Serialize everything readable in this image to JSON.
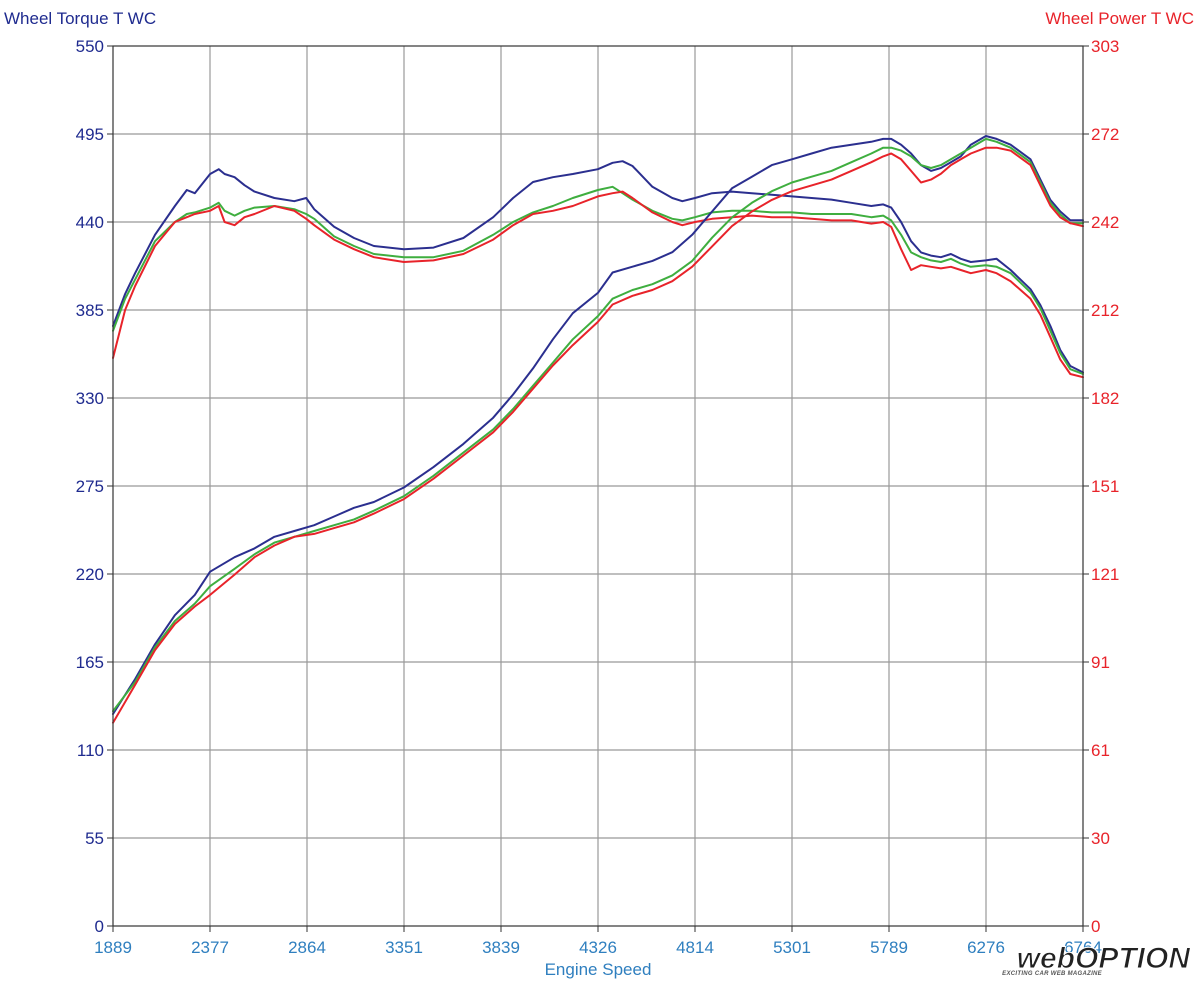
{
  "colors": {
    "torque_axis": "#1f2b8f",
    "power_axis": "#e8232a",
    "x_axis": "#2f7fbf",
    "run_blue": "#2b2f8f",
    "run_green": "#3fae3f",
    "run_red": "#e8232a",
    "grid": "#999999",
    "frame": "#333333"
  },
  "watermark": {
    "main": "webOPTION",
    "sub": "EXCITING CAR WEB MAGAZINE"
  },
  "chart_data": {
    "type": "line",
    "ylabel_left": "Wheel Torque T WC",
    "ylabel_right": "Wheel Power T WC",
    "xlabel": "Engine Speed",
    "xlim": [
      1889,
      6764
    ],
    "ylim_left": [
      0,
      550
    ],
    "ylim_right": [
      0,
      303
    ],
    "x_ticks": [
      "1889",
      "2377",
      "2864",
      "3351",
      "3839",
      "4326",
      "4814",
      "5301",
      "5789",
      "6276",
      "6764"
    ],
    "y_ticks_left": [
      "0",
      "55",
      "110",
      "165",
      "220",
      "275",
      "330",
      "385",
      "440",
      "495",
      "550"
    ],
    "y_ticks_right": [
      "0",
      "30",
      "61",
      "91",
      "121",
      "151",
      "182",
      "212",
      "242",
      "272",
      "303"
    ],
    "grid": true,
    "series": [
      {
        "id": "torque_blue",
        "axis": "left",
        "color": "#2b2f8f",
        "x": [
          1889,
          1950,
          2000,
          2100,
          2200,
          2260,
          2300,
          2377,
          2420,
          2450,
          2500,
          2550,
          2600,
          2700,
          2800,
          2860,
          2900,
          3000,
          3100,
          3200,
          3351,
          3500,
          3650,
          3800,
          3900,
          4000,
          4100,
          4200,
          4326,
          4400,
          4450,
          4500,
          4600,
          4700,
          4750,
          4814,
          4900,
          5000,
          5100,
          5200,
          5301,
          5400,
          5500,
          5600,
          5700,
          5760,
          5800,
          5850,
          5900,
          5950,
          6000,
          6050,
          6100,
          6150,
          6200,
          6276,
          6330,
          6400,
          6500,
          6550,
          6600,
          6650,
          6700,
          6764
        ],
        "y": [
          375,
          395,
          408,
          432,
          450,
          460,
          458,
          470,
          473,
          470,
          468,
          463,
          459,
          455,
          453,
          455,
          448,
          437,
          430,
          425,
          423,
          424,
          430,
          443,
          455,
          465,
          468,
          470,
          473,
          477,
          478,
          475,
          462,
          455,
          453,
          455,
          458,
          459,
          458,
          457,
          456,
          455,
          454,
          452,
          450,
          451,
          449,
          440,
          428,
          421,
          419,
          418,
          420,
          417,
          415,
          416,
          417,
          410,
          398,
          388,
          375,
          360,
          350,
          346
        ]
      },
      {
        "id": "torque_green",
        "axis": "left",
        "color": "#3fae3f",
        "x": [
          1889,
          1950,
          2000,
          2100,
          2200,
          2260,
          2300,
          2377,
          2420,
          2450,
          2500,
          2550,
          2600,
          2700,
          2800,
          2860,
          2900,
          3000,
          3100,
          3200,
          3351,
          3500,
          3650,
          3800,
          3900,
          4000,
          4100,
          4200,
          4326,
          4400,
          4450,
          4500,
          4600,
          4700,
          4750,
          4814,
          4900,
          5000,
          5100,
          5200,
          5301,
          5400,
          5500,
          5600,
          5700,
          5760,
          5800,
          5850,
          5900,
          5950,
          6000,
          6050,
          6100,
          6150,
          6200,
          6276,
          6330,
          6400,
          6500,
          6550,
          6600,
          6650,
          6700,
          6764
        ],
        "y": [
          372,
          392,
          404,
          428,
          440,
          445,
          446,
          449,
          452,
          447,
          444,
          447,
          449,
          450,
          448,
          445,
          442,
          431,
          425,
          420,
          418,
          418,
          422,
          432,
          440,
          446,
          450,
          455,
          460,
          462,
          458,
          454,
          447,
          442,
          441,
          443,
          446,
          447,
          447,
          446,
          446,
          445,
          445,
          445,
          443,
          444,
          441,
          432,
          421,
          418,
          416,
          415,
          417,
          414,
          412,
          413,
          412,
          408,
          396,
          386,
          372,
          358,
          348,
          345
        ]
      },
      {
        "id": "torque_red",
        "axis": "left",
        "color": "#e8232a",
        "x": [
          1889,
          1950,
          2000,
          2100,
          2200,
          2260,
          2300,
          2377,
          2420,
          2450,
          2500,
          2550,
          2600,
          2700,
          2800,
          2860,
          2900,
          3000,
          3100,
          3200,
          3351,
          3500,
          3650,
          3800,
          3900,
          4000,
          4100,
          4200,
          4326,
          4400,
          4450,
          4500,
          4600,
          4700,
          4750,
          4814,
          4900,
          5000,
          5100,
          5200,
          5301,
          5400,
          5500,
          5600,
          5700,
          5760,
          5800,
          5850,
          5900,
          5950,
          6000,
          6050,
          6100,
          6150,
          6200,
          6276,
          6330,
          6400,
          6500,
          6550,
          6600,
          6650,
          6700,
          6764
        ],
        "y": [
          355,
          385,
          400,
          425,
          440,
          443,
          445,
          447,
          450,
          440,
          438,
          443,
          445,
          450,
          447,
          442,
          438,
          429,
          423,
          418,
          415,
          416,
          420,
          429,
          438,
          445,
          447,
          450,
          456,
          458,
          459,
          455,
          446,
          440,
          438,
          440,
          442,
          443,
          444,
          443,
          443,
          442,
          441,
          441,
          439,
          440,
          437,
          423,
          410,
          413,
          412,
          411,
          412,
          410,
          408,
          410,
          408,
          403,
          392,
          382,
          368,
          354,
          345,
          343
        ]
      },
      {
        "id": "power_blue",
        "axis": "right",
        "color": "#2b2f8f",
        "x": [
          1889,
          2000,
          2100,
          2200,
          2300,
          2377,
          2500,
          2600,
          2700,
          2800,
          2900,
          3000,
          3100,
          3200,
          3351,
          3500,
          3650,
          3800,
          3900,
          4000,
          4100,
          4200,
          4326,
          4400,
          4500,
          4600,
          4700,
          4800,
          4900,
          5000,
          5100,
          5200,
          5301,
          5400,
          5500,
          5600,
          5700,
          5760,
          5800,
          5850,
          5900,
          5950,
          6000,
          6050,
          6100,
          6150,
          6200,
          6276,
          6330,
          6400,
          6500,
          6550,
          6600,
          6650,
          6700,
          6764
        ],
        "y": [
          73,
          85,
          97,
          107,
          114,
          122,
          127,
          130,
          134,
          136,
          138,
          141,
          144,
          146,
          151,
          158,
          166,
          175,
          183,
          192,
          202,
          211,
          218,
          225,
          227,
          229,
          232,
          238,
          246,
          254,
          258,
          262,
          264,
          266,
          268,
          269,
          270,
          271,
          271,
          269,
          266,
          262,
          260,
          261,
          263,
          265,
          269,
          272,
          271,
          269,
          264,
          257,
          250,
          246,
          243,
          243
        ]
      },
      {
        "id": "power_green",
        "axis": "right",
        "color": "#3fae3f",
        "x": [
          1889,
          2000,
          2100,
          2200,
          2300,
          2377,
          2500,
          2600,
          2700,
          2800,
          2900,
          3000,
          3100,
          3200,
          3351,
          3500,
          3650,
          3800,
          3900,
          4000,
          4100,
          4200,
          4326,
          4400,
          4500,
          4600,
          4700,
          4800,
          4900,
          5000,
          5100,
          5200,
          5301,
          5400,
          5500,
          5600,
          5700,
          5760,
          5800,
          5850,
          5900,
          5950,
          6000,
          6050,
          6100,
          6150,
          6200,
          6276,
          6330,
          6400,
          6500,
          6550,
          6600,
          6650,
          6700,
          6764
        ],
        "y": [
          74,
          84,
          96,
          105,
          111,
          117,
          123,
          128,
          132,
          134,
          136,
          138,
          140,
          143,
          148,
          155,
          163,
          171,
          178,
          186,
          194,
          202,
          210,
          216,
          219,
          221,
          224,
          229,
          237,
          244,
          249,
          253,
          256,
          258,
          260,
          263,
          266,
          268,
          268,
          267,
          265,
          262,
          261,
          262,
          264,
          266,
          268,
          271,
          270,
          268,
          263,
          256,
          249,
          245,
          242,
          242
        ]
      },
      {
        "id": "power_red",
        "axis": "right",
        "color": "#e8232a",
        "x": [
          1889,
          2000,
          2100,
          2200,
          2300,
          2377,
          2500,
          2600,
          2700,
          2800,
          2900,
          3000,
          3100,
          3200,
          3351,
          3500,
          3650,
          3800,
          3900,
          4000,
          4100,
          4200,
          4326,
          4400,
          4500,
          4600,
          4700,
          4800,
          4900,
          5000,
          5100,
          5200,
          5301,
          5400,
          5500,
          5600,
          5700,
          5760,
          5800,
          5850,
          5900,
          5950,
          6000,
          6050,
          6100,
          6150,
          6200,
          6276,
          6330,
          6400,
          6500,
          6550,
          6600,
          6650,
          6700,
          6764
        ],
        "y": [
          70,
          83,
          95,
          104,
          110,
          114,
          121,
          127,
          131,
          134,
          135,
          137,
          139,
          142,
          147,
          154,
          162,
          170,
          177,
          185,
          193,
          200,
          208,
          214,
          217,
          219,
          222,
          227,
          234,
          241,
          246,
          250,
          253,
          255,
          257,
          260,
          263,
          265,
          266,
          264,
          260,
          256,
          257,
          259,
          262,
          264,
          266,
          268,
          268,
          267,
          262,
          255,
          248,
          244,
          242,
          241
        ]
      }
    ]
  }
}
